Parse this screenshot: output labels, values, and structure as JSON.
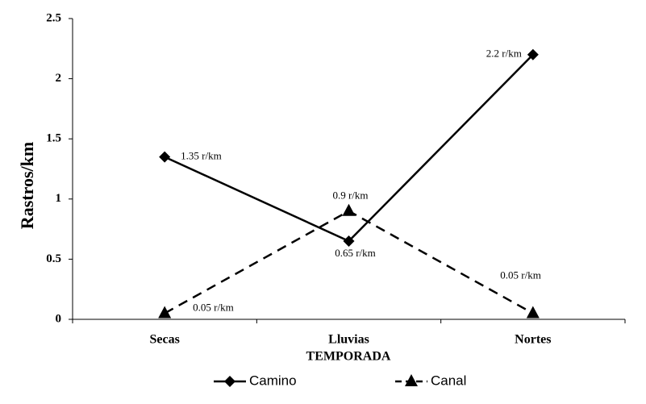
{
  "chart_data": {
    "type": "line",
    "x_label": "TEMPORADA",
    "y_label": "Rastros/km",
    "categories": [
      "Secas",
      "Lluvias",
      "Nortes"
    ],
    "series": [
      {
        "name": "Camino",
        "color": "#000000",
        "line_style": "solid",
        "marker": "diamond",
        "values": [
          1.35,
          0.65,
          2.2
        ],
        "value_labels": [
          "1.35 r/km",
          "0.65 r/km",
          "2.2 r/km"
        ]
      },
      {
        "name": "Canal",
        "color": "#000000",
        "line_style": "dashed",
        "marker": "triangle",
        "values": [
          0.05,
          0.9,
          0.05
        ],
        "value_labels": [
          "0.05 r/km",
          "0.9 r/km",
          "0.05 r/km"
        ]
      }
    ],
    "ylim": [
      0,
      2.5
    ],
    "yticks": [
      0,
      0.5,
      1,
      1.5,
      2,
      2.5
    ],
    "grid": false,
    "legend": "bottom"
  }
}
